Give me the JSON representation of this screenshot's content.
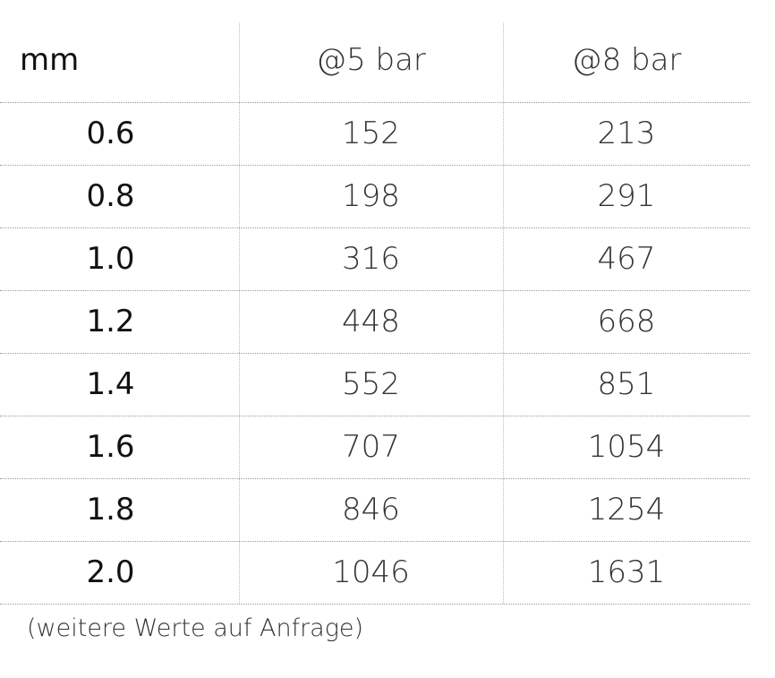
{
  "table": {
    "header": [
      "mm",
      "@5 bar",
      "@8 bar"
    ],
    "rows": [
      [
        "0.6",
        "152",
        "213"
      ],
      [
        "0.8",
        "198",
        "291"
      ],
      [
        "1.0",
        "316",
        "467"
      ],
      [
        "1.2",
        "448",
        "668"
      ],
      [
        "1.4",
        "552",
        "851"
      ],
      [
        "1.6",
        "707",
        "1054"
      ],
      [
        "1.8",
        "846",
        "1254"
      ],
      [
        "2.0",
        "1046",
        "1631"
      ]
    ]
  },
  "footnote": "(weitere Werte auf Anfrage)"
}
